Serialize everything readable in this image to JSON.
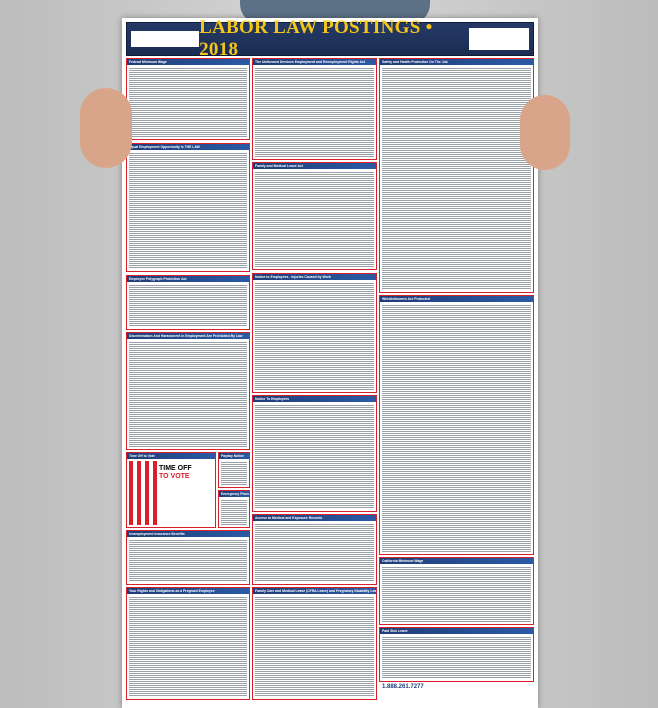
{
  "poster": {
    "title": "LABOR LAW POSTINGS • 2018",
    "footer_phone": "1.888.261.7277",
    "sections": [
      {
        "title": "Federal Minimum Wage"
      },
      {
        "title": "Equal Employment Opportunity Is THE LAW"
      },
      {
        "title": "Employee Polygraph Protection Act"
      },
      {
        "title": "Discrimination And Harassment In Employment Are Prohibited By Law"
      },
      {
        "title": "Time Off to Vote"
      },
      {
        "title": "Payday Notice"
      },
      {
        "title": "Emergency Phone Numbers"
      },
      {
        "title": "Unemployment Insurance Benefits"
      },
      {
        "title": "Your Rights and Obligations as a Pregnant Employee"
      },
      {
        "title": "The Uniformed Services Employment and Reemployment Rights Act"
      },
      {
        "title": "Family and Medical Leave Act"
      },
      {
        "title": "Notice to Employees - Injuries Caused by Work"
      },
      {
        "title": "Notice To Employees"
      },
      {
        "title": "Access to Medical and Exposure Records"
      },
      {
        "title": "Family Care and Medical Leave (CFRA Leave) and Pregnancy Disability Leave"
      },
      {
        "title": "Safety and Health Protection On The Job"
      },
      {
        "title": "Whistleblowers Are Protected"
      },
      {
        "title": "California Minimum Wage"
      },
      {
        "title": "Paid Sick Leave"
      }
    ],
    "vote": {
      "line1": "TIME OFF",
      "line2": "TO VOTE"
    }
  },
  "colors": {
    "header": "#1b2c52",
    "title": "#f5c518",
    "border": "#d8202a"
  }
}
